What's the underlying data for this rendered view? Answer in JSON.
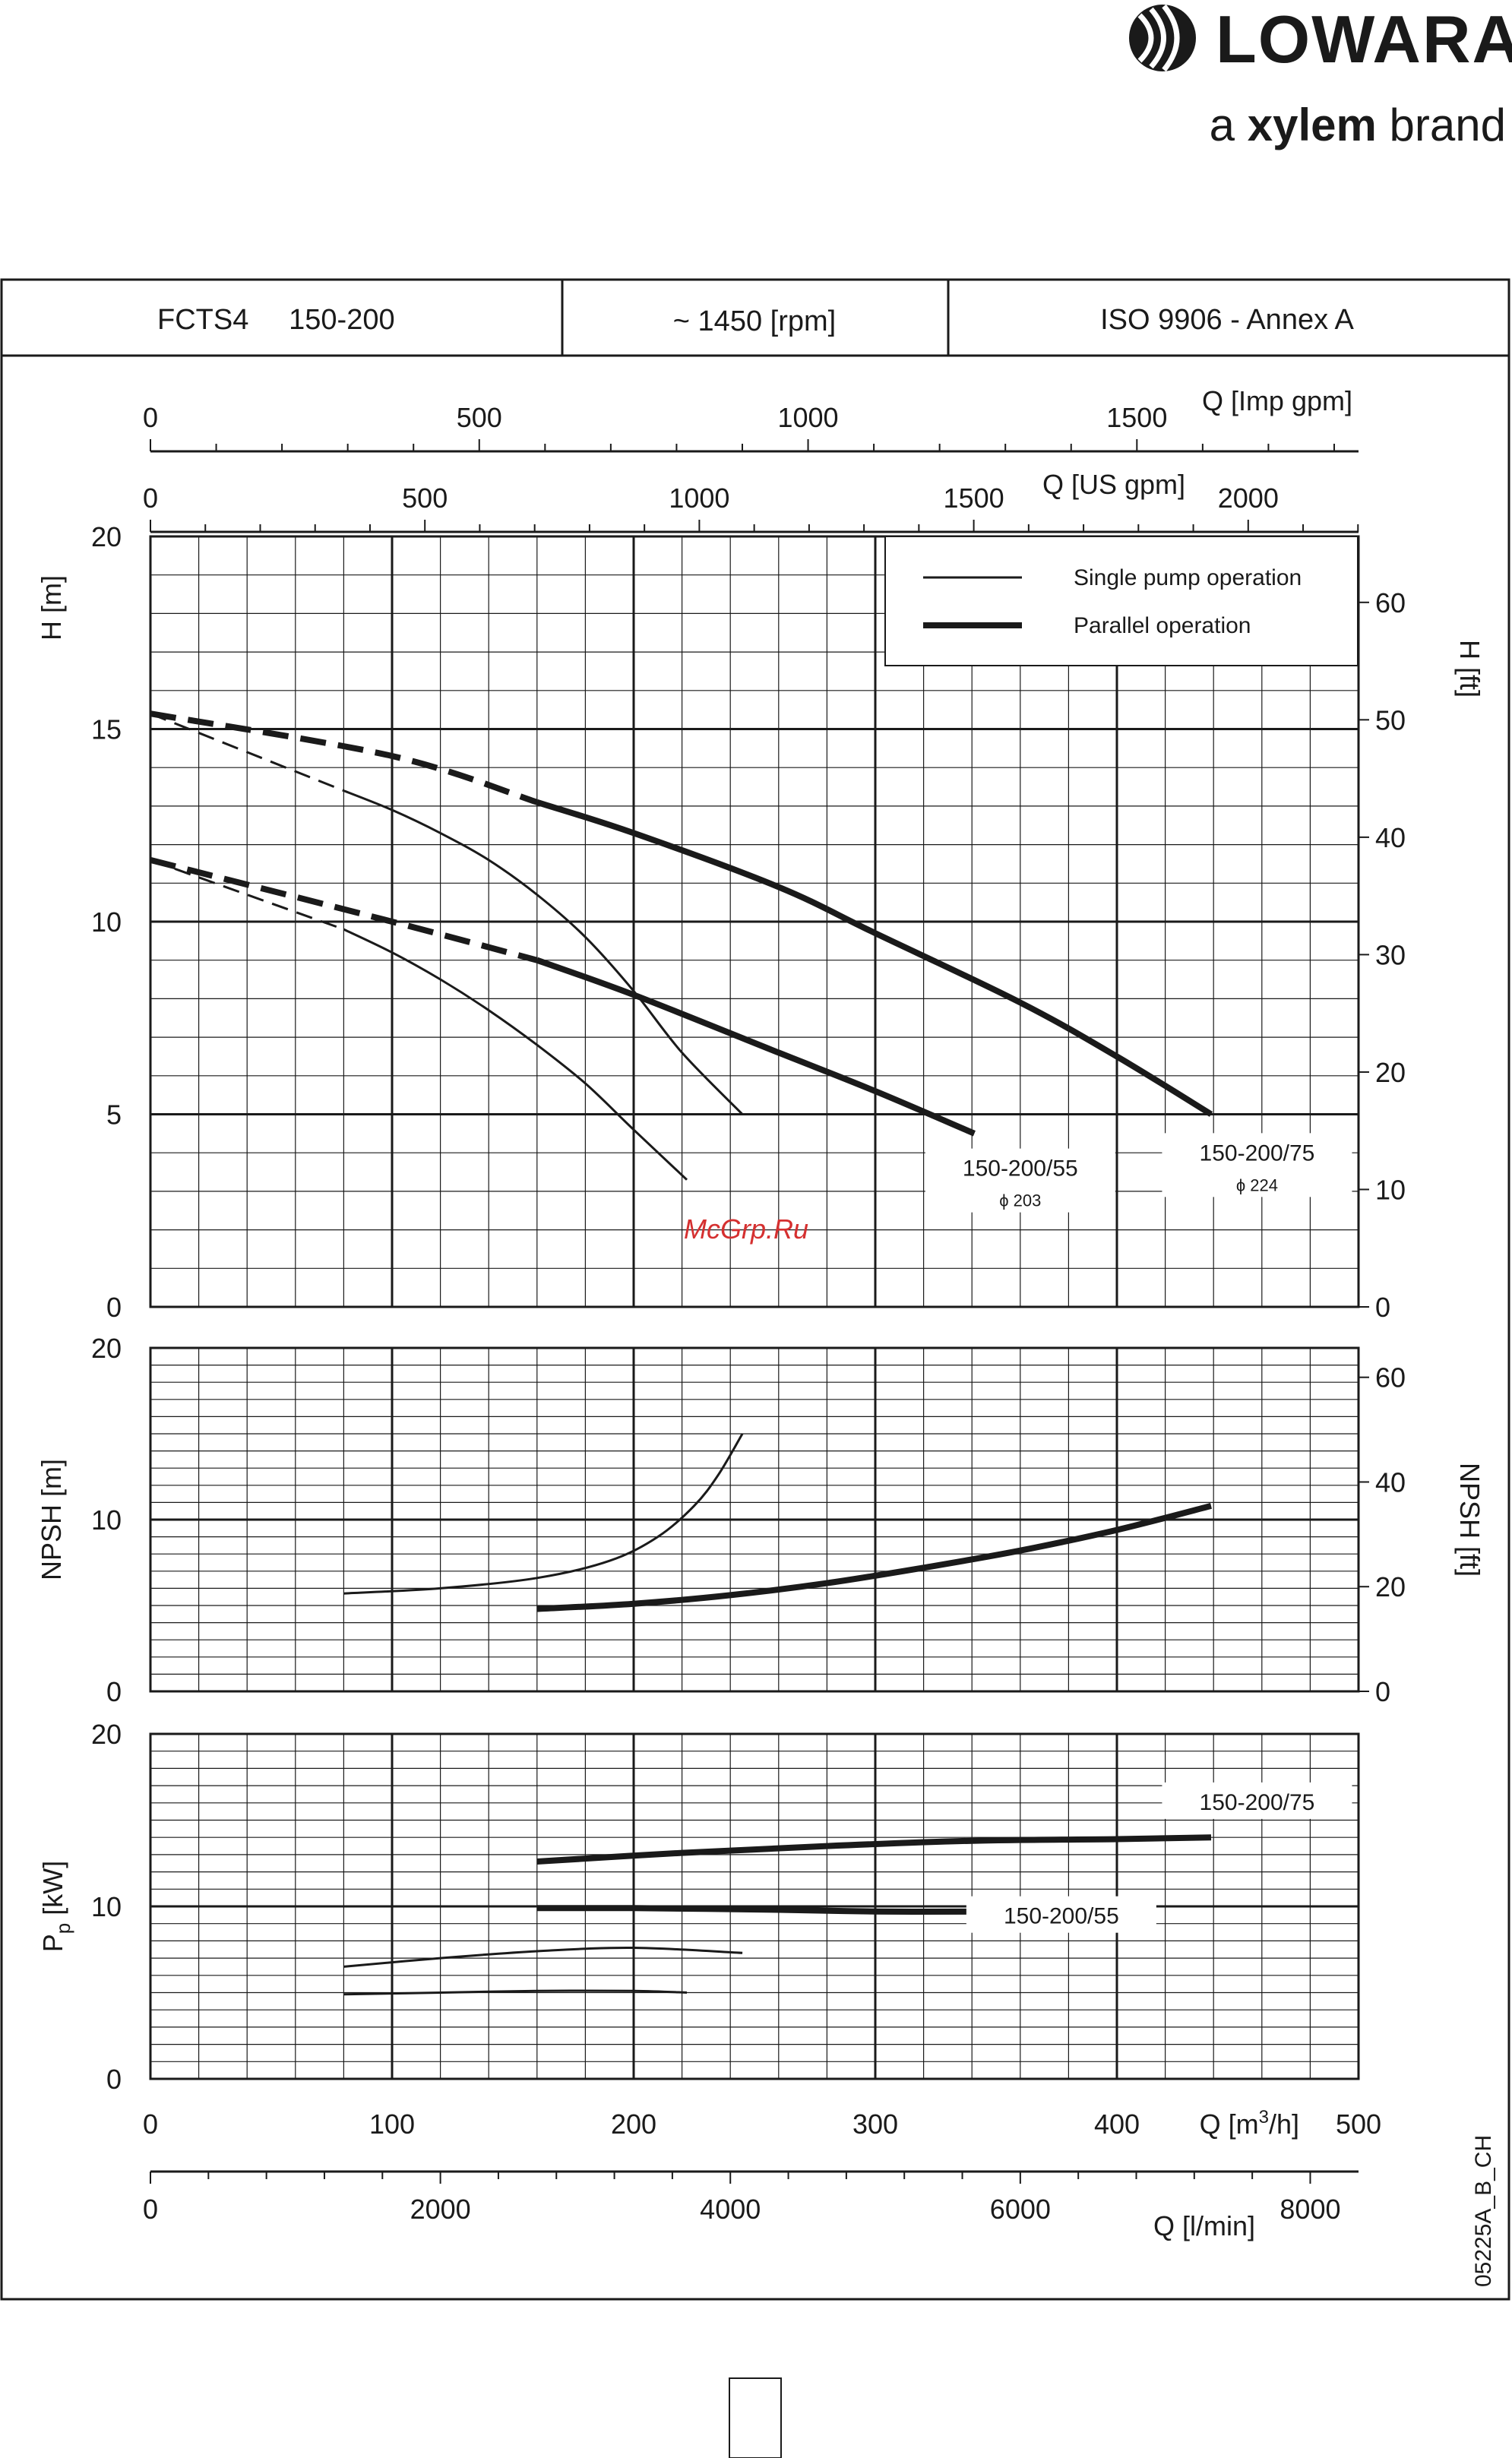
{
  "brand": {
    "name": "LOWARA",
    "tagline_prefix": "a ",
    "tagline_bold": "xylem",
    "tagline_suffix": " brand"
  },
  "header": {
    "model": "FCTS4     150-200",
    "speed": "~ 1450 [rpm]",
    "standard": "ISO 9906 - Annex A"
  },
  "axes": {
    "imp_gpm": {
      "label": "Q [Imp gpm]",
      "ticks": [
        0,
        500,
        1000,
        1500
      ],
      "range": [
        0,
        1837
      ]
    },
    "us_gpm": {
      "label": "Q [US gpm]",
      "ticks": [
        0,
        500,
        1000,
        1500,
        2000
      ],
      "range": [
        0,
        2201
      ]
    },
    "q_m3h": {
      "label_main": "Q [m",
      "label_sup": "3",
      "label_end": "/h]",
      "ticks": [
        0,
        100,
        200,
        300,
        400,
        500
      ],
      "range": [
        0,
        500
      ]
    },
    "q_lmin": {
      "label": "Q [l/min]",
      "ticks": [
        0,
        2000,
        4000,
        6000,
        8000
      ],
      "range": [
        0,
        8333
      ]
    }
  },
  "legend": {
    "single": "Single pump operation",
    "parallel": "Parallel operation"
  },
  "watermark": "McGrp.Ru",
  "code": "05225A_B_CH",
  "chart_data": [
    {
      "type": "line",
      "name": "head",
      "ylabel": "H [m]",
      "ylabel_right": "H [ft]",
      "ylim": [
        0,
        20
      ],
      "yticks": [
        0,
        5,
        10,
        15,
        20
      ],
      "yticks_right": [
        0,
        10,
        20,
        30,
        40,
        50,
        60
      ],
      "xlim": [
        0,
        500
      ],
      "grid": true,
      "legend_position": "top-right",
      "annotations": [
        {
          "text": "150-200/55",
          "sub": "ϕ 203",
          "x": 360,
          "y": 3.4
        },
        {
          "text": "150-200/75",
          "sub": "ϕ 224",
          "x": 458,
          "y": 3.8
        }
      ],
      "series": [
        {
          "style": "single",
          "dashed_to": 80,
          "x": [
            0,
            80,
            100,
            120,
            140,
            160,
            180,
            200,
            222
          ],
          "y": [
            11.6,
            9.8,
            9.2,
            8.5,
            7.7,
            6.8,
            5.8,
            4.6,
            3.3
          ]
        },
        {
          "style": "single",
          "dashed_to": 80,
          "x": [
            0,
            80,
            100,
            120,
            140,
            160,
            180,
            200,
            220,
            245
          ],
          "y": [
            15.4,
            13.4,
            12.9,
            12.3,
            11.6,
            10.7,
            9.6,
            8.2,
            6.6,
            5.0
          ]
        },
        {
          "style": "parallel",
          "dashed_to": 160,
          "x": [
            0,
            100,
            160,
            200,
            260,
            300,
            341
          ],
          "y": [
            11.6,
            10.0,
            9.0,
            8.1,
            6.6,
            5.6,
            4.5
          ]
        },
        {
          "style": "parallel",
          "dashed_to": 160,
          "x": [
            0,
            100,
            160,
            200,
            260,
            300,
            360,
            400,
            439
          ],
          "y": [
            15.4,
            14.3,
            13.1,
            12.3,
            10.9,
            9.7,
            7.9,
            6.5,
            5.0
          ]
        }
      ]
    },
    {
      "type": "line",
      "name": "npsh",
      "ylabel": "NPSH [m]",
      "ylabel_right": "NPSH [ft]",
      "ylim": [
        0,
        20
      ],
      "yticks": [
        0,
        10,
        20
      ],
      "yticks_right": [
        0,
        20,
        40,
        60
      ],
      "xlim": [
        0,
        500
      ],
      "grid": true,
      "series": [
        {
          "style": "single",
          "x": [
            80,
            120,
            160,
            190,
            210,
            225,
            235,
            245
          ],
          "y": [
            5.7,
            6.0,
            6.6,
            7.6,
            9.0,
            10.8,
            12.6,
            15.0
          ]
        },
        {
          "style": "parallel",
          "x": [
            160,
            200,
            240,
            280,
            320,
            360,
            400,
            439
          ],
          "y": [
            4.8,
            5.1,
            5.6,
            6.3,
            7.2,
            8.2,
            9.4,
            10.8
          ]
        }
      ]
    },
    {
      "type": "line",
      "name": "power",
      "ylabel_main": "P",
      "ylabel_sub": "p",
      "ylabel_unit": " [kW]",
      "ylim": [
        0,
        20
      ],
      "yticks": [
        0,
        10,
        20
      ],
      "xlim": [
        0,
        500
      ],
      "grid": true,
      "annotations": [
        {
          "text": "150-200/75",
          "x": 458,
          "y": 15.6
        },
        {
          "text": "150-200/55",
          "x": 377,
          "y": 9.0
        }
      ],
      "series": [
        {
          "style": "single",
          "x": [
            80,
            120,
            160,
            200,
            245
          ],
          "y": [
            6.5,
            7.0,
            7.4,
            7.6,
            7.3
          ]
        },
        {
          "style": "single",
          "x": [
            80,
            120,
            160,
            200,
            222
          ],
          "y": [
            4.9,
            5.0,
            5.1,
            5.1,
            5.0
          ]
        },
        {
          "style": "parallel",
          "x": [
            160,
            220,
            280,
            340,
            400,
            439
          ],
          "y": [
            12.6,
            13.1,
            13.5,
            13.8,
            13.9,
            14.0
          ]
        },
        {
          "style": "parallel",
          "x": [
            160,
            200,
            260,
            300,
            341
          ],
          "y": [
            9.9,
            9.9,
            9.8,
            9.7,
            9.7
          ]
        }
      ]
    }
  ]
}
